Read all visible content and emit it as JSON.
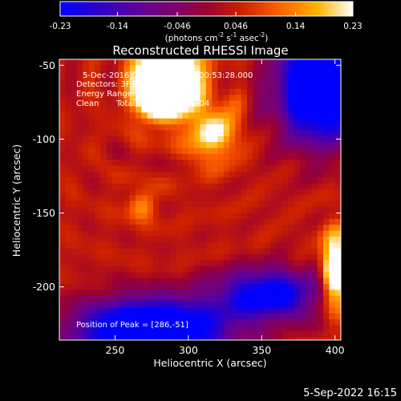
{
  "colorbar": {
    "ticks": [
      "-0.23",
      "-0.14",
      "-0.046",
      "0.046",
      "0.14",
      "0.23"
    ],
    "tick_values": [
      -0.23,
      -0.14,
      -0.046,
      0.046,
      0.14,
      0.23
    ],
    "range": [
      -0.23,
      0.23
    ],
    "units_main": "(photons cm",
    "units_exp1": "-2",
    "units_mid": " s",
    "units_exp2": "-1",
    "units_tail": " asec",
    "units_exp3": "-2",
    "units_close": ")"
  },
  "chart_data": {
    "type": "heatmap",
    "title": "Reconstructed RHESSI Image",
    "xlabel": "Heliocentric X (arcsec)",
    "ylabel": "Heliocentric Y (arcsec)",
    "xlim": [
      212,
      404
    ],
    "ylim": [
      -236,
      -46
    ],
    "xticks": [
      "250",
      "300",
      "350",
      "400"
    ],
    "xtick_values": [
      250,
      300,
      350,
      400
    ],
    "yticks": [
      "-50",
      "-100",
      "-150",
      "-200"
    ],
    "ytick_values": [
      -50,
      -100,
      -150,
      -200
    ],
    "colormap": "red-temperature",
    "peak": [
      286,
      -51
    ],
    "sources": [
      {
        "x": 286,
        "y": -55,
        "amp": 0.5,
        "sx": 14,
        "sy": 12
      },
      {
        "x": 281,
        "y": -75,
        "amp": 0.3,
        "sx": 12,
        "sy": 10
      },
      {
        "x": 316,
        "y": -95,
        "amp": 0.2,
        "sx": 12,
        "sy": 14
      },
      {
        "x": 400,
        "y": -190,
        "amp": 0.32,
        "sx": 6,
        "sy": 18
      },
      {
        "x": 268,
        "y": -145,
        "amp": 0.12,
        "sx": 7,
        "sy": 7
      }
    ],
    "dips": [
      {
        "x": 390,
        "y": -65,
        "amp": 0.45,
        "sx": 20,
        "sy": 25
      },
      {
        "x": 275,
        "y": -230,
        "amp": 0.45,
        "sx": 35,
        "sy": 15
      },
      {
        "x": 355,
        "y": -205,
        "amp": 0.3,
        "sx": 25,
        "sy": 12
      }
    ],
    "annotations": {
      "time": "5-Dec-2016 00:48:56.000 to 00:53:28.000",
      "detectors": "Detectors: 3F 9F, Att 0",
      "energy": "Energy Range: 3.0 - 6.0 keV",
      "clean_label": "Clean",
      "total_counts": "Total counts: 2.92E+04",
      "peak_text": "Position of Peak = [286,-51]"
    }
  },
  "footer": {
    "date": "5-Sep-2022 16:15"
  }
}
